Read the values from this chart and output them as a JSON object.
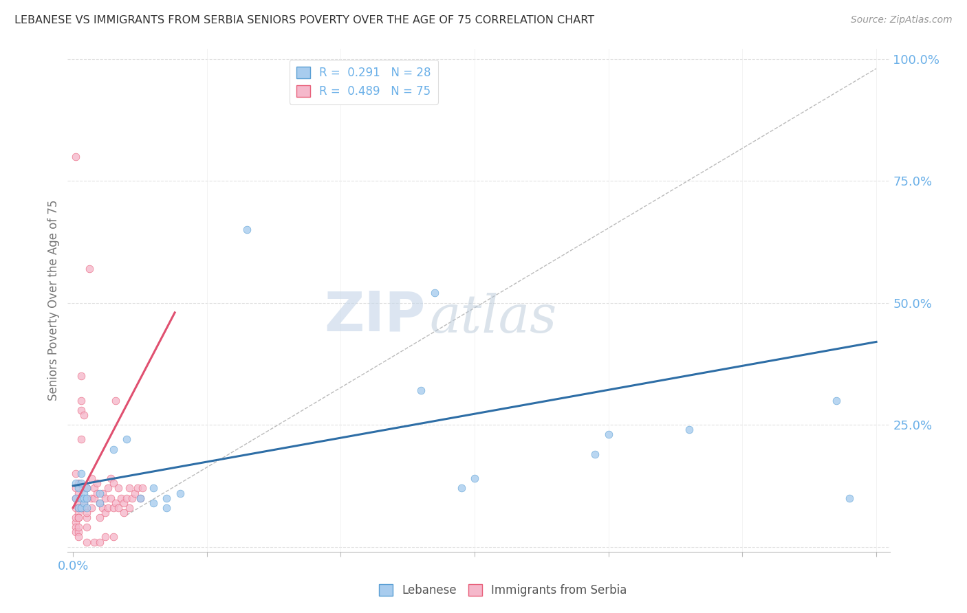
{
  "title": "LEBANESE VS IMMIGRANTS FROM SERBIA SENIORS POVERTY OVER THE AGE OF 75 CORRELATION CHART",
  "source": "Source: ZipAtlas.com",
  "ylabel": "Seniors Poverty Over the Age of 75",
  "x_ticks_pos": [
    0.0,
    0.05,
    0.1,
    0.15,
    0.2,
    0.25,
    0.3
  ],
  "x_tick_labels_sparse": {
    "0.0": "0.0%"
  },
  "y_ticks_right": [
    0.0,
    0.25,
    0.5,
    0.75,
    1.0
  ],
  "y_tick_labels_right": [
    "",
    "25.0%",
    "50.0%",
    "75.0%",
    "100.0%"
  ],
  "xlim": [
    -0.002,
    0.305
  ],
  "ylim": [
    -0.01,
    1.02
  ],
  "blue_scatter": [
    [
      0.001,
      0.13
    ],
    [
      0.001,
      0.1
    ],
    [
      0.002,
      0.12
    ],
    [
      0.002,
      0.08
    ],
    [
      0.003,
      0.15
    ],
    [
      0.003,
      0.1
    ],
    [
      0.003,
      0.08
    ],
    [
      0.003,
      0.13
    ],
    [
      0.004,
      0.11
    ],
    [
      0.004,
      0.09
    ],
    [
      0.004,
      0.1
    ],
    [
      0.005,
      0.12
    ],
    [
      0.005,
      0.1
    ],
    [
      0.005,
      0.08
    ],
    [
      0.01,
      0.11
    ],
    [
      0.01,
      0.09
    ],
    [
      0.015,
      0.2
    ],
    [
      0.02,
      0.22
    ],
    [
      0.025,
      0.1
    ],
    [
      0.03,
      0.12
    ],
    [
      0.03,
      0.09
    ],
    [
      0.035,
      0.1
    ],
    [
      0.035,
      0.08
    ],
    [
      0.04,
      0.11
    ],
    [
      0.065,
      0.65
    ],
    [
      0.13,
      0.32
    ],
    [
      0.135,
      0.52
    ],
    [
      0.145,
      0.12
    ],
    [
      0.15,
      0.14
    ],
    [
      0.195,
      0.19
    ],
    [
      0.2,
      0.23
    ],
    [
      0.23,
      0.24
    ],
    [
      0.285,
      0.3
    ],
    [
      0.29,
      0.1
    ]
  ],
  "pink_scatter": [
    [
      0.001,
      0.05
    ],
    [
      0.001,
      0.08
    ],
    [
      0.001,
      0.1
    ],
    [
      0.001,
      0.06
    ],
    [
      0.001,
      0.12
    ],
    [
      0.001,
      0.04
    ],
    [
      0.001,
      0.03
    ],
    [
      0.001,
      0.15
    ],
    [
      0.002,
      0.09
    ],
    [
      0.002,
      0.07
    ],
    [
      0.002,
      0.06
    ],
    [
      0.002,
      0.03
    ],
    [
      0.002,
      0.11
    ],
    [
      0.002,
      0.08
    ],
    [
      0.002,
      0.04
    ],
    [
      0.002,
      0.06
    ],
    [
      0.002,
      0.02
    ],
    [
      0.002,
      0.13
    ],
    [
      0.003,
      0.3
    ],
    [
      0.003,
      0.28
    ],
    [
      0.003,
      0.08
    ],
    [
      0.003,
      0.35
    ],
    [
      0.003,
      0.22
    ],
    [
      0.004,
      0.27
    ],
    [
      0.004,
      0.08
    ],
    [
      0.004,
      0.12
    ],
    [
      0.004,
      0.09
    ],
    [
      0.005,
      0.1
    ],
    [
      0.005,
      0.06
    ],
    [
      0.005,
      0.04
    ],
    [
      0.005,
      0.12
    ],
    [
      0.005,
      0.07
    ],
    [
      0.006,
      0.57
    ],
    [
      0.007,
      0.14
    ],
    [
      0.007,
      0.1
    ],
    [
      0.007,
      0.08
    ],
    [
      0.008,
      0.1
    ],
    [
      0.008,
      0.12
    ],
    [
      0.009,
      0.13
    ],
    [
      0.009,
      0.11
    ],
    [
      0.01,
      0.09
    ],
    [
      0.01,
      0.06
    ],
    [
      0.011,
      0.11
    ],
    [
      0.011,
      0.08
    ],
    [
      0.012,
      0.1
    ],
    [
      0.012,
      0.07
    ],
    [
      0.013,
      0.12
    ],
    [
      0.013,
      0.08
    ],
    [
      0.014,
      0.14
    ],
    [
      0.014,
      0.1
    ],
    [
      0.015,
      0.13
    ],
    [
      0.015,
      0.08
    ],
    [
      0.016,
      0.3
    ],
    [
      0.016,
      0.09
    ],
    [
      0.017,
      0.12
    ],
    [
      0.017,
      0.08
    ],
    [
      0.018,
      0.1
    ],
    [
      0.019,
      0.09
    ],
    [
      0.019,
      0.07
    ],
    [
      0.02,
      0.1
    ],
    [
      0.021,
      0.12
    ],
    [
      0.021,
      0.08
    ],
    [
      0.022,
      0.1
    ],
    [
      0.023,
      0.11
    ],
    [
      0.024,
      0.12
    ],
    [
      0.025,
      0.1
    ],
    [
      0.026,
      0.12
    ],
    [
      0.001,
      0.8
    ],
    [
      0.005,
      0.01
    ],
    [
      0.008,
      0.01
    ],
    [
      0.01,
      0.01
    ],
    [
      0.012,
      0.02
    ],
    [
      0.015,
      0.02
    ]
  ],
  "blue_line": {
    "x": [
      0.0,
      0.3
    ],
    "y": [
      0.125,
      0.42
    ]
  },
  "pink_line": {
    "x": [
      0.0,
      0.038
    ],
    "y": [
      0.08,
      0.48
    ]
  },
  "diag_line": {
    "x": [
      0.02,
      0.3
    ],
    "y": [
      0.065,
      0.98
    ]
  },
  "scatter_size": 60,
  "blue_color": "#A8CCEE",
  "pink_color": "#F5B8CB",
  "blue_edge_color": "#5A9FD4",
  "pink_edge_color": "#E8607A",
  "blue_line_color": "#2E6EA6",
  "pink_line_color": "#E05070",
  "axis_color": "#6BB0E8",
  "grid_color": "#E0E0E0",
  "watermark_zip_color": "#C5D5E8",
  "watermark_atlas_color": "#B8C8D8"
}
